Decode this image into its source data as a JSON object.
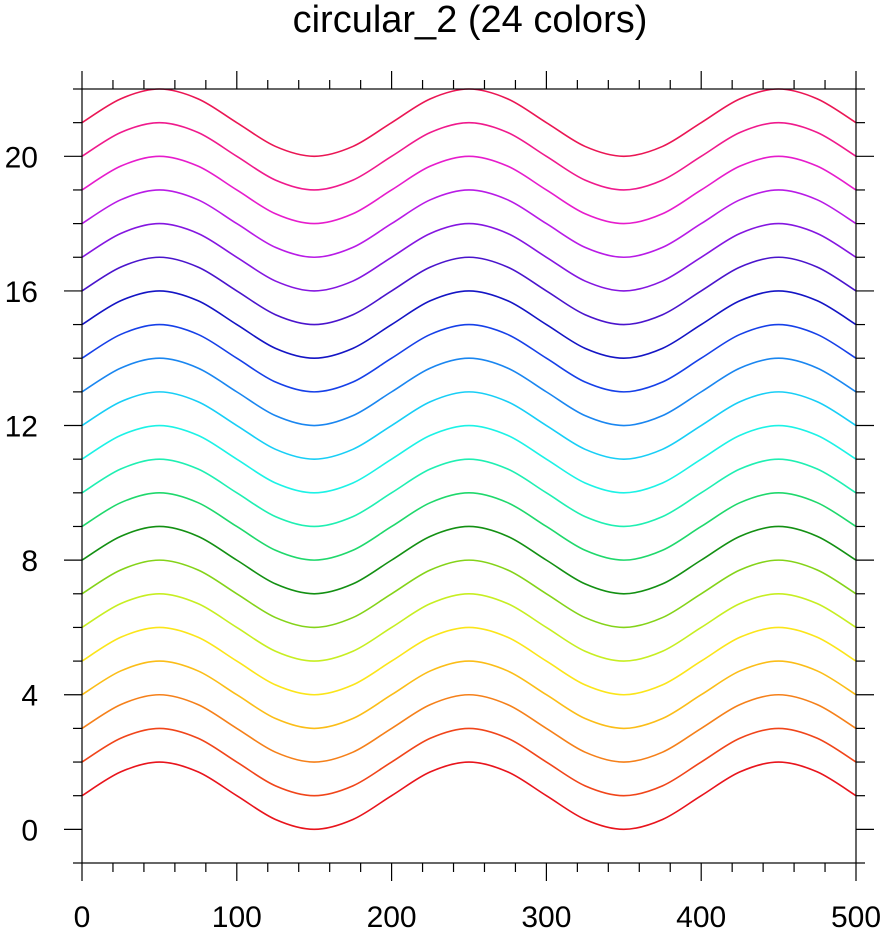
{
  "chart_data": {
    "type": "line",
    "title": "circular_2 (24 colors)",
    "xlabel": "",
    "ylabel": "",
    "xlim": [
      0,
      500
    ],
    "ylim": [
      -1,
      22
    ],
    "x_ticks": [
      0,
      100,
      200,
      300,
      400,
      500
    ],
    "y_ticks": [
      0,
      4,
      8,
      12,
      16,
      20
    ],
    "x_tick_labels": [
      "0",
      "100",
      "200",
      "300",
      "400",
      "500"
    ],
    "y_tick_labels": [
      "0",
      "4",
      "8",
      "12",
      "16",
      "20"
    ],
    "x_minor_step": 20,
    "y_minor_step": 1,
    "grid": false,
    "legend": "none",
    "x": [
      0,
      25,
      50,
      75,
      100,
      125,
      150,
      175,
      200,
      225,
      250,
      275,
      300,
      325,
      350,
      375,
      400,
      425,
      450,
      475,
      500
    ],
    "series": [
      {
        "color": "#e8141c",
        "values": [
          1,
          1.707,
          2,
          1.707,
          1,
          0.293,
          0,
          0.293,
          1,
          1.707,
          2,
          1.707,
          1,
          0.293,
          0,
          0.293,
          1,
          1.707,
          2,
          1.707,
          1
        ]
      },
      {
        "color": "#f0451a",
        "values": [
          2,
          2.707,
          3,
          2.707,
          2,
          1.293,
          1,
          1.293,
          2,
          2.707,
          3,
          2.707,
          2,
          1.293,
          1,
          1.293,
          2,
          2.707,
          3,
          2.707,
          2
        ]
      },
      {
        "color": "#f5801a",
        "values": [
          3,
          3.707,
          4,
          3.707,
          3,
          2.293,
          2,
          2.293,
          3,
          3.707,
          4,
          3.707,
          3,
          2.293,
          2,
          2.293,
          3,
          3.707,
          4,
          3.707,
          3
        ]
      },
      {
        "color": "#fbbd18",
        "values": [
          4,
          4.707,
          5,
          4.707,
          4,
          3.293,
          3,
          3.293,
          4,
          4.707,
          5,
          4.707,
          4,
          3.293,
          3,
          3.293,
          4,
          4.707,
          5,
          4.707,
          4
        ]
      },
      {
        "color": "#fbe51a",
        "values": [
          5,
          5.707,
          6,
          5.707,
          5,
          4.293,
          4,
          4.293,
          5,
          5.707,
          6,
          5.707,
          5,
          4.293,
          4,
          4.293,
          5,
          5.707,
          6,
          5.707,
          5
        ]
      },
      {
        "color": "#c7ee22",
        "values": [
          6,
          6.707,
          7,
          6.707,
          6,
          5.293,
          5,
          5.293,
          6,
          6.707,
          7,
          6.707,
          6,
          5.293,
          5,
          5.293,
          6,
          6.707,
          7,
          6.707,
          6
        ]
      },
      {
        "color": "#84d319",
        "values": [
          7,
          7.707,
          8,
          7.707,
          7,
          6.293,
          6,
          6.293,
          7,
          7.707,
          8,
          7.707,
          7,
          6.293,
          6,
          6.293,
          7,
          7.707,
          8,
          7.707,
          7
        ]
      },
      {
        "color": "#139013",
        "values": [
          8,
          8.707,
          9,
          8.707,
          8,
          7.293,
          7,
          7.293,
          8,
          8.707,
          9,
          8.707,
          8,
          7.293,
          7,
          7.293,
          8,
          8.707,
          9,
          8.707,
          8
        ]
      },
      {
        "color": "#1fd86c",
        "values": [
          9,
          9.707,
          10,
          9.707,
          9,
          8.293,
          8,
          8.293,
          9,
          9.707,
          10,
          9.707,
          9,
          8.293,
          8,
          8.293,
          9,
          9.707,
          10,
          9.707,
          9
        ]
      },
      {
        "color": "#1fefb2",
        "values": [
          10,
          10.707,
          11,
          10.707,
          10,
          9.293,
          9,
          9.293,
          10,
          10.707,
          11,
          10.707,
          10,
          9.293,
          9,
          9.293,
          10,
          10.707,
          11,
          10.707,
          10
        ]
      },
      {
        "color": "#1cf2e6",
        "values": [
          11,
          11.707,
          12,
          11.707,
          11,
          10.293,
          10,
          10.293,
          11,
          11.707,
          12,
          11.707,
          11,
          10.293,
          10,
          10.293,
          11,
          11.707,
          12,
          11.707,
          11
        ]
      },
      {
        "color": "#18cef6",
        "values": [
          12,
          12.707,
          13,
          12.707,
          12,
          11.293,
          11,
          11.293,
          12,
          12.707,
          13,
          12.707,
          12,
          11.293,
          11,
          11.293,
          12,
          12.707,
          13,
          12.707,
          12
        ]
      },
      {
        "color": "#1a86f0",
        "values": [
          13,
          13.707,
          14,
          13.707,
          13,
          12.293,
          12,
          12.293,
          13,
          13.707,
          14,
          13.707,
          13,
          12.293,
          12,
          12.293,
          13,
          13.707,
          14,
          13.707,
          13
        ]
      },
      {
        "color": "#1640e8",
        "values": [
          14,
          14.707,
          15,
          14.707,
          14,
          13.293,
          13,
          13.293,
          14,
          14.707,
          15,
          14.707,
          14,
          13.293,
          13,
          13.293,
          14,
          14.707,
          15,
          14.707,
          14
        ]
      },
      {
        "color": "#1414c4",
        "values": [
          15,
          15.707,
          16,
          15.707,
          15,
          14.293,
          14,
          14.293,
          15,
          15.707,
          16,
          15.707,
          15,
          14.293,
          14,
          14.293,
          15,
          15.707,
          16,
          15.707,
          15
        ]
      },
      {
        "color": "#4a14cc",
        "values": [
          16,
          16.707,
          17,
          16.707,
          16,
          15.293,
          15,
          15.293,
          16,
          16.707,
          17,
          16.707,
          16,
          15.293,
          15,
          15.293,
          16,
          16.707,
          17,
          16.707,
          16
        ]
      },
      {
        "color": "#8416e0",
        "values": [
          17,
          17.707,
          18,
          17.707,
          17,
          16.293,
          16,
          16.293,
          17,
          17.707,
          18,
          17.707,
          17,
          16.293,
          16,
          16.293,
          17,
          17.707,
          18,
          17.707,
          17
        ]
      },
      {
        "color": "#b81be6",
        "values": [
          18,
          18.707,
          19,
          18.707,
          18,
          17.293,
          17,
          17.293,
          18,
          18.707,
          19,
          18.707,
          18,
          17.293,
          17,
          17.293,
          18,
          18.707,
          19,
          18.707,
          18
        ]
      },
      {
        "color": "#e61ccc",
        "values": [
          19,
          19.707,
          20,
          19.707,
          19,
          18.293,
          18,
          18.293,
          19,
          19.707,
          20,
          19.707,
          19,
          18.293,
          18,
          18.293,
          19,
          19.707,
          20,
          19.707,
          19
        ]
      },
      {
        "color": "#ef1a8c",
        "values": [
          20,
          20.707,
          21,
          20.707,
          20,
          19.293,
          19,
          19.293,
          20,
          20.707,
          21,
          20.707,
          20,
          19.293,
          19,
          19.293,
          20,
          20.707,
          21,
          20.707,
          20
        ]
      },
      {
        "color": "#ea1654",
        "values": [
          21,
          21.707,
          22,
          21.707,
          21,
          20.293,
          20,
          20.293,
          21,
          21.707,
          22,
          21.707,
          21,
          20.293,
          20,
          20.293,
          21,
          21.707,
          22,
          21.707,
          21
        ]
      }
    ]
  }
}
